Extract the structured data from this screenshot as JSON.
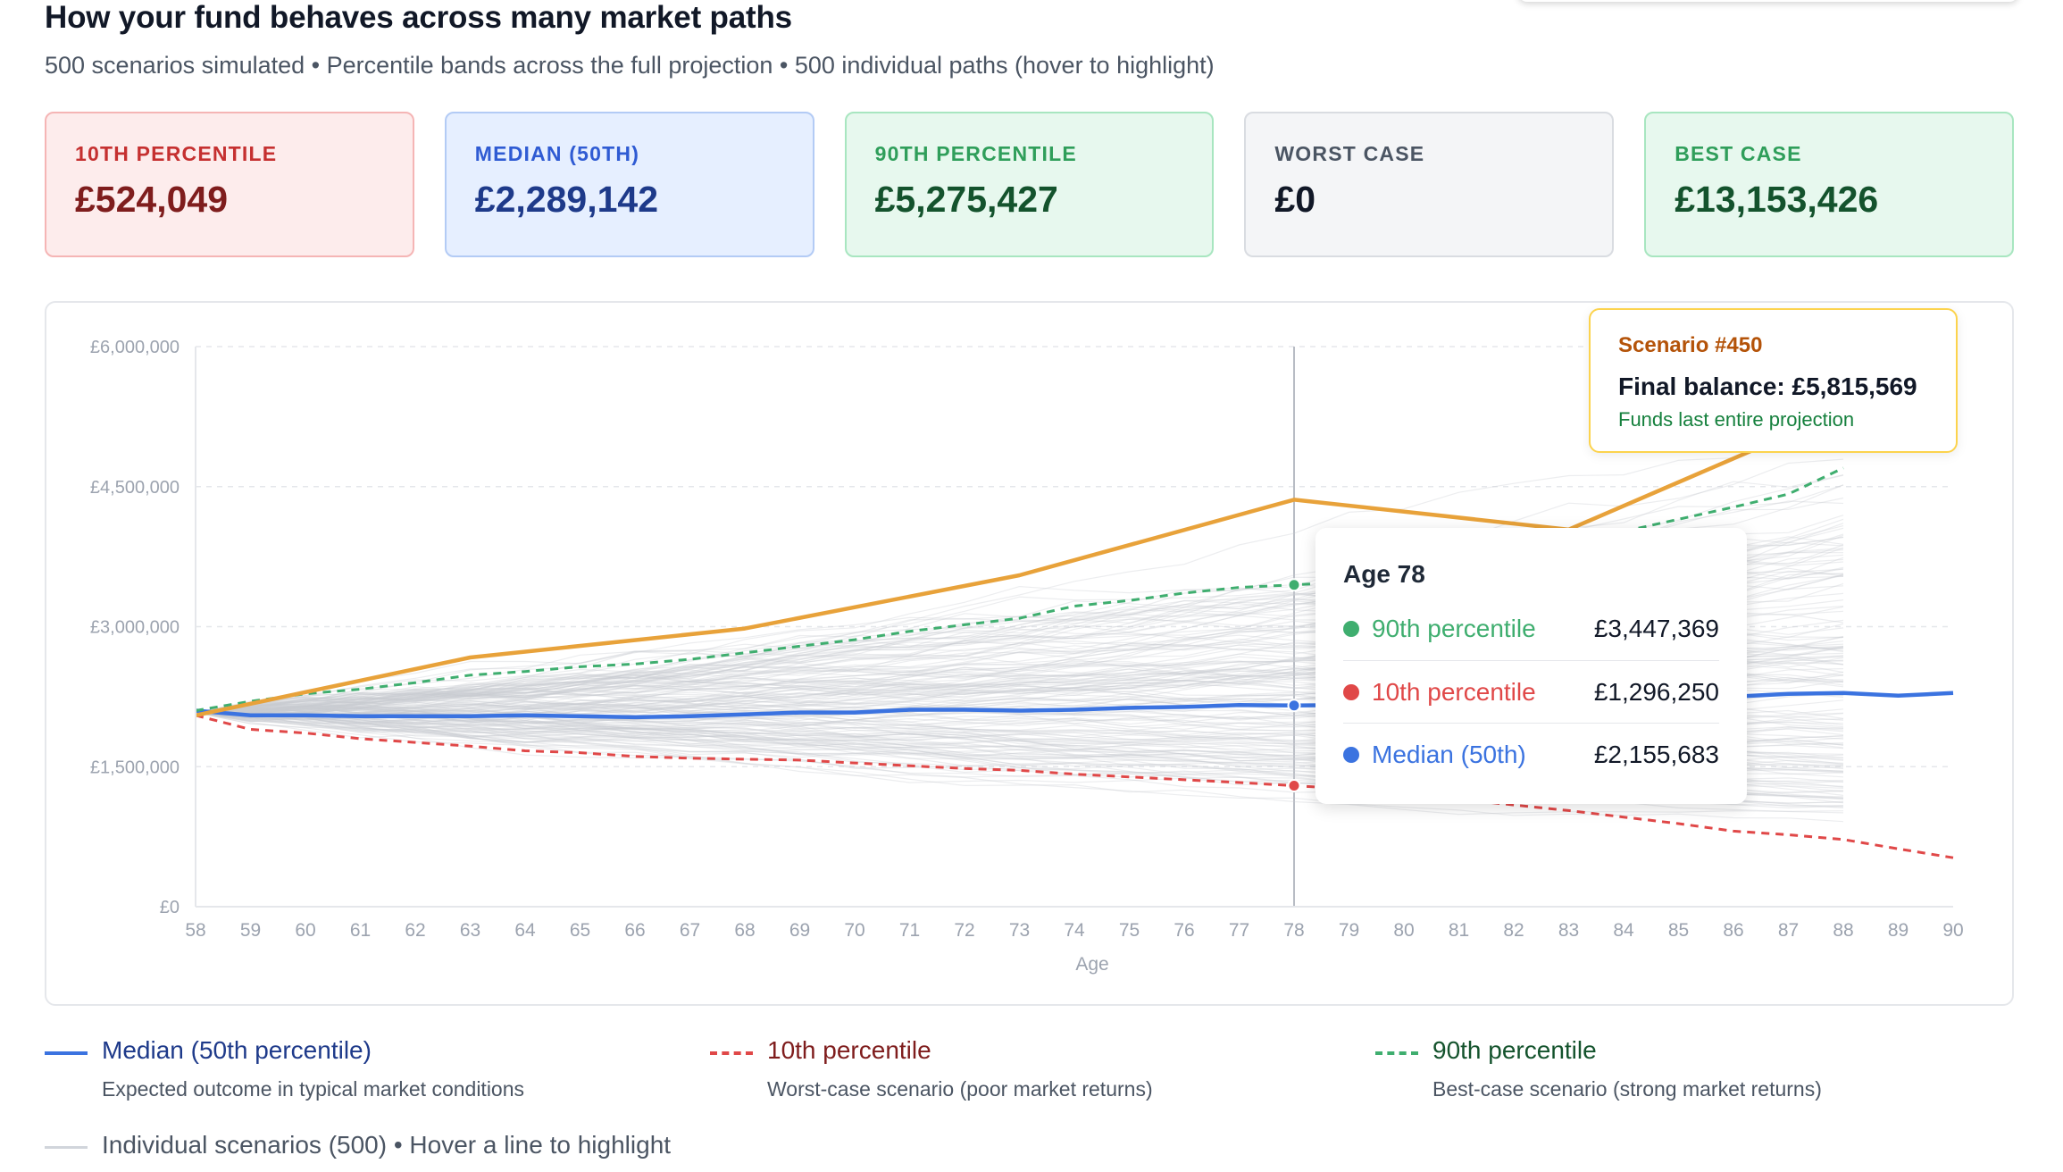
{
  "page": {
    "title": "How your fund behaves across many market paths",
    "subtitle": "500 scenarios simulated • Percentile bands across the full projection • 500 individual paths (hover to highlight)"
  },
  "cards": [
    {
      "label": "10TH PERCENTILE",
      "value": "£524,049",
      "bg": "#fdecec",
      "border": "#f5b5b5",
      "label_color": "#c53030",
      "value_color": "#7f1d1d"
    },
    {
      "label": "MEDIAN (50TH)",
      "value": "£2,289,142",
      "bg": "#e6efff",
      "border": "#b3cbf5",
      "label_color": "#2f5bd3",
      "value_color": "#1e3a8a"
    },
    {
      "label": "90TH PERCENTILE",
      "value": "£5,275,427",
      "bg": "#e7f8ee",
      "border": "#a8e6c0",
      "label_color": "#2f9e5a",
      "value_color": "#14532d"
    },
    {
      "label": "WORST CASE",
      "value": "£0",
      "bg": "#f4f5f7",
      "border": "#d9dce1",
      "label_color": "#4b5563",
      "value_color": "#111827"
    },
    {
      "label": "BEST CASE",
      "value": "£13,153,426",
      "bg": "#e7f8ee",
      "border": "#a8e6c0",
      "label_color": "#2f9e5a",
      "value_color": "#14532d"
    }
  ],
  "chart_data": {
    "type": "line",
    "xlabel": "Age",
    "ylabel": "",
    "xlim": [
      58,
      90
    ],
    "ylim": [
      0,
      6000000
    ],
    "y_ticks": [
      0,
      1500000,
      3000000,
      4500000,
      6000000
    ],
    "y_tick_labels": [
      "£0",
      "£1,500,000",
      "£3,000,000",
      "£4,500,000",
      "£6,000,000"
    ],
    "x": [
      58,
      59,
      60,
      61,
      62,
      63,
      64,
      65,
      66,
      67,
      68,
      69,
      70,
      71,
      72,
      73,
      74,
      75,
      76,
      77,
      78,
      79,
      80,
      81,
      82,
      83,
      84,
      85,
      86,
      87,
      88,
      89,
      90
    ],
    "series": [
      {
        "name": "Median (50th percentile)",
        "color": "#3b73e0",
        "style": "solid",
        "values": [
          2100000,
          2050000,
          2050000,
          2040000,
          2040000,
          2040000,
          2050000,
          2040000,
          2030000,
          2040000,
          2060000,
          2080000,
          2080000,
          2110000,
          2110000,
          2100000,
          2110000,
          2130000,
          2140000,
          2160000,
          2155683,
          2160000,
          2170000,
          2180000,
          2190000,
          2200000,
          2220000,
          2230000,
          2250000,
          2280000,
          2290000,
          2260000,
          2289142
        ]
      },
      {
        "name": "10th percentile",
        "color": "#e04848",
        "style": "dashed",
        "values": [
          2050000,
          1900000,
          1860000,
          1800000,
          1760000,
          1720000,
          1670000,
          1650000,
          1610000,
          1590000,
          1580000,
          1570000,
          1540000,
          1510000,
          1480000,
          1460000,
          1420000,
          1390000,
          1360000,
          1330000,
          1296250,
          1260000,
          1220000,
          1150000,
          1090000,
          1030000,
          960000,
          890000,
          810000,
          770000,
          720000,
          620000,
          524049
        ]
      },
      {
        "name": "90th percentile",
        "color": "#3fae6f",
        "style": "dashed",
        "values": [
          2100000,
          2200000,
          2280000,
          2330000,
          2400000,
          2480000,
          2520000,
          2570000,
          2600000,
          2650000,
          2720000,
          2790000,
          2860000,
          2950000,
          3020000,
          3090000,
          3220000,
          3280000,
          3360000,
          3420000,
          3447369,
          3480000,
          3520000,
          3570000,
          3650000,
          3850000,
          4020000,
          4150000,
          4280000,
          4420000,
          4700000,
          null,
          null
        ]
      },
      {
        "name": "Scenario #450",
        "color": "#e8a23a",
        "style": "solid",
        "values": [
          2050000,
          null,
          null,
          null,
          null,
          2670000,
          null,
          null,
          null,
          null,
          2980000,
          null,
          null,
          null,
          null,
          3550000,
          null,
          null,
          null,
          null,
          4360000,
          null,
          null,
          null,
          null,
          4040000,
          null,
          null,
          null,
          null,
          null,
          null,
          5815569
        ]
      }
    ],
    "individual_scenarios_count": 500,
    "crosshair_age": 78,
    "grid": true
  },
  "tooltip_age": {
    "title": "Age 78",
    "rows": [
      {
        "label": "90th percentile",
        "value": "£3,447,369",
        "color": "#3fae6f"
      },
      {
        "label": "10th percentile",
        "value": "£1,296,250",
        "color": "#e04848"
      },
      {
        "label": "Median (50th)",
        "value": "£2,155,683",
        "color": "#3b73e0"
      }
    ]
  },
  "tooltip_scenario": {
    "title": "Scenario #450",
    "final": "Final balance: £5,815,569",
    "note": "Funds last entire projection"
  },
  "legend": [
    {
      "name": "Median (50th percentile)",
      "desc": "Expected outcome in typical market conditions",
      "color": "#3b73e0",
      "name_color": "#1e3a8a",
      "style": "solid"
    },
    {
      "name": "10th percentile",
      "desc": "Worst-case scenario (poor market returns)",
      "color": "#e04848",
      "name_color": "#7f1d1d",
      "style": "dashed"
    },
    {
      "name": "90th percentile",
      "desc": "Best-case scenario (strong market returns)",
      "color": "#3fae6f",
      "name_color": "#14532d",
      "style": "dashed"
    },
    {
      "name": "Individual scenarios (500) • Hover a line to highlight",
      "desc": "",
      "color": "#d1d5db",
      "name_color": "#4b5563",
      "style": "solid"
    }
  ]
}
